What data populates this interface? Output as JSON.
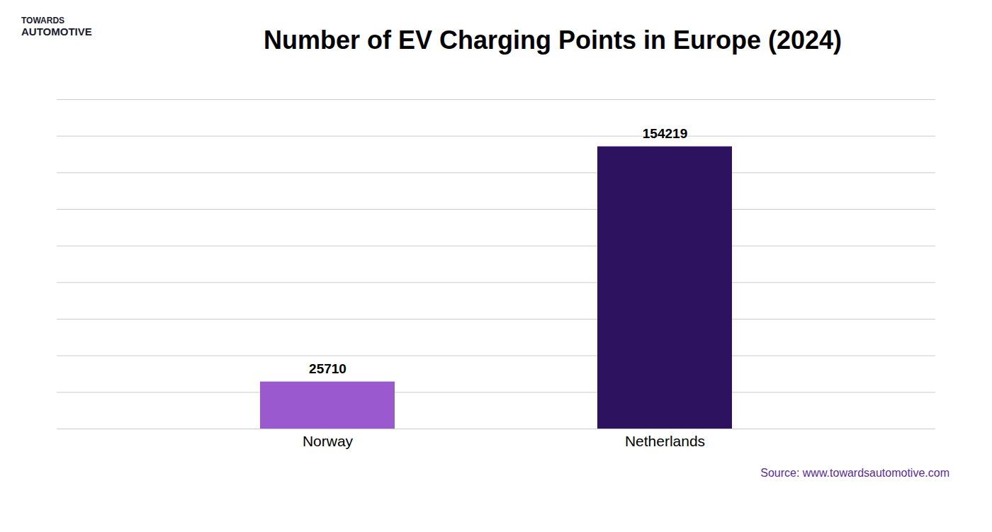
{
  "chart_data": {
    "type": "bar",
    "title": "Number of EV Charging Points in Europe (2024)",
    "categories": [
      "Norway",
      "Netherlands"
    ],
    "values": [
      25710,
      154219
    ],
    "colors": [
      "#9b59d0",
      "#2d1260"
    ],
    "ylim": [
      0,
      180000
    ],
    "yticks": [
      0,
      20000,
      40000,
      60000,
      80000,
      100000,
      120000,
      140000,
      160000,
      180000
    ],
    "grid": true,
    "data_labels": true,
    "tick_labels": "x",
    "annotations": [
      {
        "text": "Source: www.towardsautomotive.com",
        "color": "#5b2d8e"
      },
      {
        "text": "TOWARDS"
      },
      {
        "text": "AUTOMOTIVE"
      }
    ]
  }
}
